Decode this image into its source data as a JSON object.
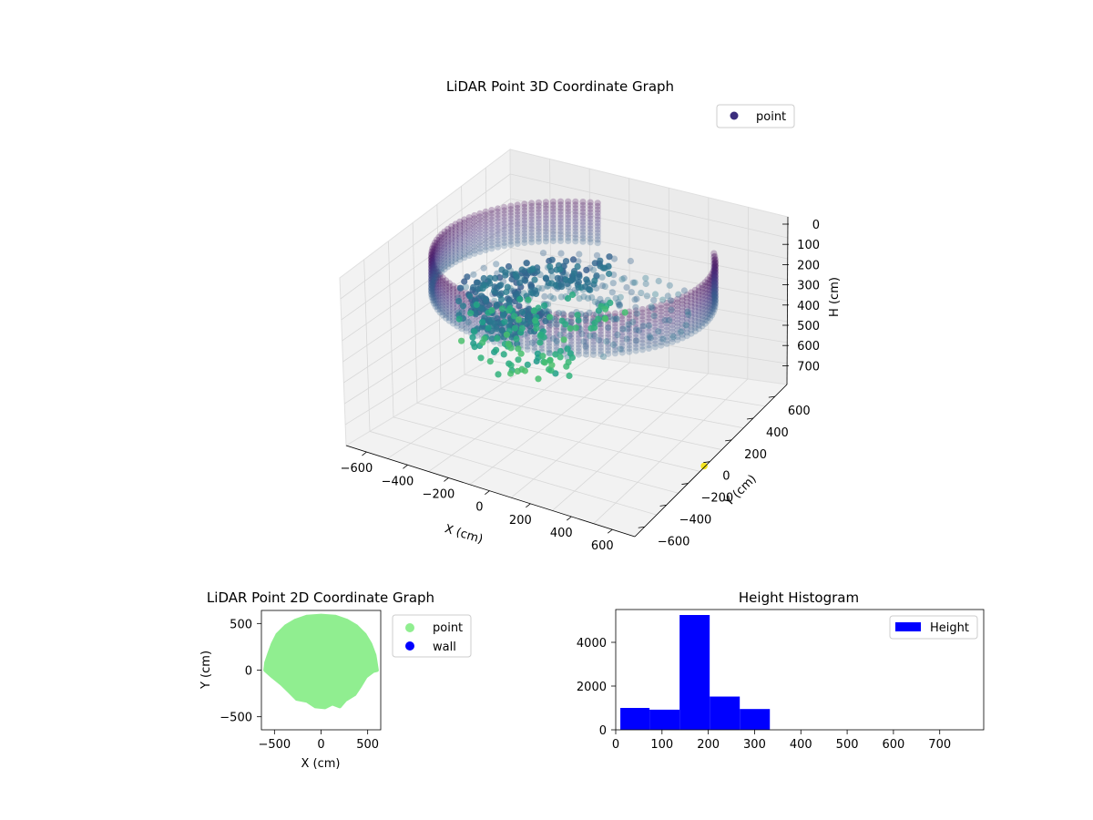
{
  "chart_data": [
    {
      "type": "scatter",
      "projection": "3d",
      "title": "LiDAR Point 3D Coordinate Graph",
      "xlabel": "X (cm)",
      "ylabel": "Y (cm)",
      "zlabel": "H (cm)",
      "xticks": [
        "−600",
        "−400",
        "−200",
        "0",
        "200",
        "400",
        "600"
      ],
      "yticks": [
        "−600",
        "−400",
        "−200",
        "0",
        "200",
        "400",
        "600"
      ],
      "zticks": [
        "0",
        "100",
        "200",
        "300",
        "400",
        "500",
        "600",
        "700"
      ],
      "zlim": [
        780,
        0
      ],
      "z_inverted": true,
      "grid": true,
      "legend": {
        "position": "upper-right",
        "entries": [
          {
            "label": "point",
            "color": "#3b2d7d"
          }
        ]
      },
      "colormap": "viridis",
      "wall_radius": 580,
      "wall_height_range": [
        0,
        170
      ],
      "extra_point": {
        "x": 530,
        "y": 150,
        "h": 780,
        "color": "#f5e51f"
      }
    },
    {
      "type": "scatter",
      "title": "LiDAR Point 2D Coordinate Graph",
      "xlabel": "X (cm)",
      "ylabel": "Y (cm)",
      "xticks": [
        "−500",
        "0",
        "500"
      ],
      "yticks": [
        "500",
        "0",
        "−500"
      ],
      "xlim": [
        -640,
        640
      ],
      "ylim": [
        -640,
        640
      ],
      "legend": {
        "position": "outside-right",
        "entries": [
          {
            "label": "point",
            "color": "#90ee90"
          },
          {
            "label": "wall",
            "color": "#0000ff"
          }
        ]
      }
    },
    {
      "type": "bar",
      "subtype": "histogram",
      "title": "Height Histogram",
      "xticks": [
        "0",
        "100",
        "200",
        "300",
        "400",
        "500",
        "600",
        "700"
      ],
      "yticks": [
        "0",
        "2000",
        "4000"
      ],
      "xlim": [
        0,
        795
      ],
      "ylim": [
        0,
        5500
      ],
      "bar_color": "#0000ff",
      "bins": [
        {
          "x0": 10,
          "x1": 73,
          "count": 1000
        },
        {
          "x0": 73,
          "x1": 138,
          "count": 920
        },
        {
          "x0": 138,
          "x1": 203,
          "count": 5250
        },
        {
          "x0": 203,
          "x1": 268,
          "count": 1520
        },
        {
          "x0": 268,
          "x1": 333,
          "count": 950
        }
      ],
      "legend": {
        "position": "upper-right",
        "entries": [
          {
            "label": "Height",
            "color": "#0000ff"
          }
        ]
      }
    }
  ]
}
